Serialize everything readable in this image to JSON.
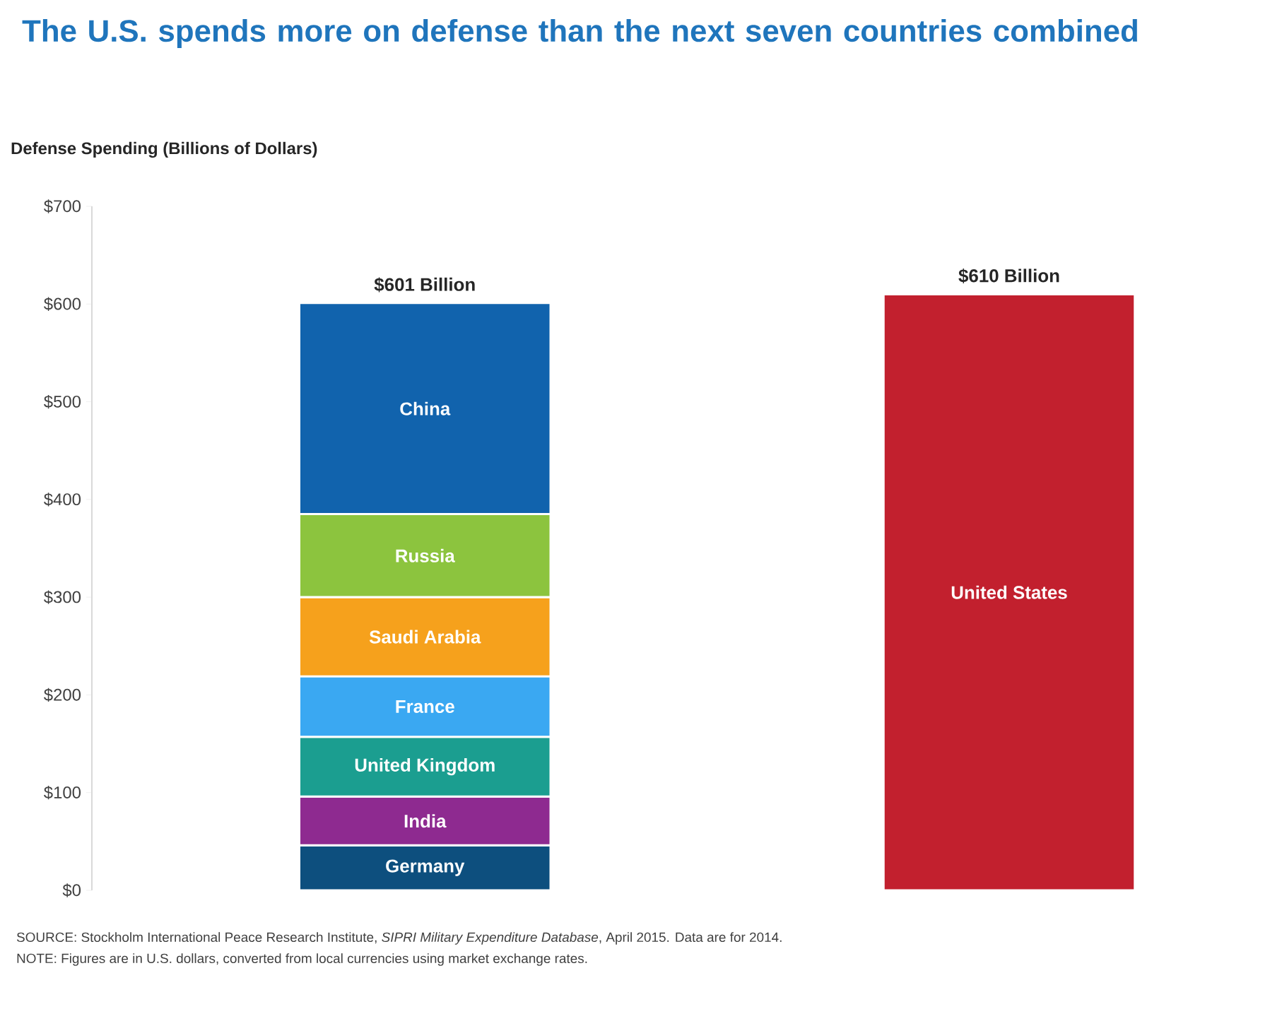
{
  "chart_data": {
    "type": "bar",
    "title": "The U.S. spends more on defense than the next seven countries combined",
    "ylabel": "Defense Spending (Billions of Dollars)",
    "categories": [
      null,
      null
    ],
    "stacked": true,
    "series": [
      {
        "name": "Germany",
        "color": "#0d4f7e",
        "values": [
          46,
          null
        ]
      },
      {
        "name": "India",
        "color": "#8e2a90",
        "values": [
          50,
          null
        ]
      },
      {
        "name": "United Kingdom",
        "color": "#1b9e90",
        "values": [
          61,
          null
        ]
      },
      {
        "name": "France",
        "color": "#3aa8f2",
        "values": [
          62,
          null
        ]
      },
      {
        "name": "Saudi Arabia",
        "color": "#f6a11c",
        "values": [
          81,
          null
        ]
      },
      {
        "name": "Russia",
        "color": "#8cc43e",
        "values": [
          85,
          null
        ]
      },
      {
        "name": "China",
        "color": "#1163ad",
        "values": [
          216,
          null
        ]
      },
      {
        "name": "United States",
        "color": "#c2202e",
        "values": [
          null,
          610
        ]
      }
    ],
    "totals": [
      "$601 Billion",
      "$610 Billion"
    ],
    "ylim": [
      0,
      700
    ],
    "yticks": [
      {
        "value": 0,
        "label": "$0"
      },
      {
        "value": 100,
        "label": "$100"
      },
      {
        "value": 200,
        "label": "$200"
      },
      {
        "value": 300,
        "label": "$300"
      },
      {
        "value": 400,
        "label": "$400"
      },
      {
        "value": 500,
        "label": "$500"
      },
      {
        "value": 600,
        "label": "$600"
      },
      {
        "value": 700,
        "label": "$700"
      }
    ],
    "annotations": [
      "SOURCE: Stockholm International Peace Research Institute, *SIPRI Military Expenditure Database*, April 2015. Data are for 2014.",
      "NOTE: Figures are in U.S. dollars, converted from local currencies using market exchange rates."
    ]
  }
}
